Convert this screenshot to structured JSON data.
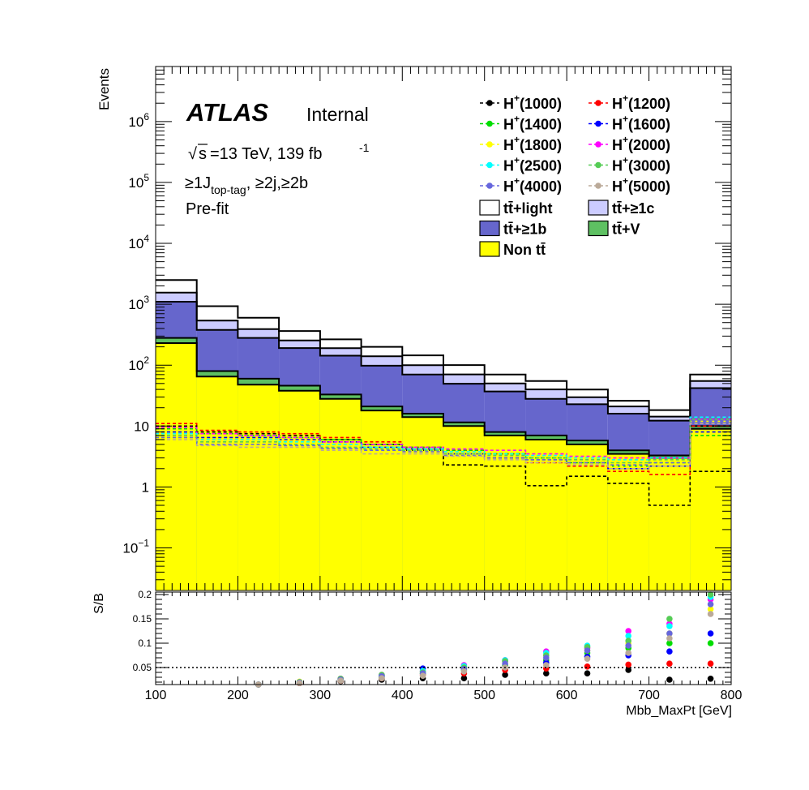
{
  "chart_data": [
    {
      "type": "bar",
      "stacked": true,
      "log_y": true,
      "atlas_label": "ATLAS",
      "status_label": "Internal",
      "energy_text": "=13 TeV, 139 fb",
      "energy_sqrt": "s",
      "lumi_exponent": "-1",
      "region_prefix": "≥1J",
      "region_sub": "top-tag",
      "region_suffix": ", ≥2j,≥2b",
      "fit_label": "Pre-fit",
      "ylabel": "Events",
      "ylim": [
        0.02,
        8000000
      ],
      "yticks": [
        {
          "v": 0.1,
          "base": "10",
          "exp": "−1"
        },
        {
          "v": 1,
          "base": "1",
          "exp": ""
        },
        {
          "v": 10,
          "base": "10",
          "exp": ""
        },
        {
          "v": 100,
          "base": "10",
          "exp": "2"
        },
        {
          "v": 1000,
          "base": "10",
          "exp": "3"
        },
        {
          "v": 10000,
          "base": "10",
          "exp": "4"
        },
        {
          "v": 100000,
          "base": "10",
          "exp": "5"
        },
        {
          "v": 1000000,
          "base": "10",
          "exp": "6"
        }
      ],
      "bin_edges": [
        100,
        150,
        200,
        250,
        300,
        350,
        400,
        450,
        500,
        550,
        600,
        650,
        700,
        750,
        800
      ],
      "series": [
        {
          "name": "Non tt̄",
          "color": "#ffff00",
          "values": [
            230,
            65,
            48,
            38,
            28,
            18,
            14,
            10,
            7.0,
            6.0,
            5.0,
            3.5,
            3.0,
            9.0
          ]
        },
        {
          "name": "tt̄+V",
          "color": "#5ec062",
          "values": [
            50,
            15,
            12,
            8,
            5,
            3,
            2,
            1.5,
            1.0,
            1.0,
            0.8,
            0.5,
            0.3,
            1.0
          ]
        },
        {
          "name": "tt̄+≥1b",
          "color": "#6666cc",
          "values": [
            820,
            300,
            220,
            145,
            110,
            77,
            54,
            38,
            29,
            21,
            17,
            12,
            9,
            32
          ]
        },
        {
          "name": "tt̄+≥1c",
          "color": "#ccccff",
          "values": [
            450,
            160,
            110,
            63,
            47,
            42,
            30,
            21,
            13,
            12,
            7,
            5,
            2,
            13
          ]
        },
        {
          "name": "tt̄+light",
          "color": "#ffffff",
          "values": [
            950,
            390,
            210,
            110,
            75,
            60,
            45,
            30,
            20,
            15,
            10,
            5,
            4,
            15
          ]
        }
      ],
      "signals": [
        {
          "name": "H(1000)",
          "color": "#000000",
          "values": [
            10,
            8,
            7.5,
            7,
            6,
            5,
            4,
            2.3,
            2.2,
            1.05,
            1.5,
            1.15,
            0.5,
            1.8
          ]
        },
        {
          "name": "H(1200)",
          "color": "#ff0000",
          "values": [
            11,
            8.5,
            8,
            7.5,
            6.5,
            5.5,
            4.5,
            4.0,
            3.5,
            2.5,
            2.2,
            1.8,
            1.6,
            10
          ]
        },
        {
          "name": "H(1400)",
          "color": "#00dd00",
          "values": [
            9,
            7.5,
            7,
            6.5,
            6,
            5,
            4.5,
            4.0,
            3.5,
            3.0,
            2.5,
            2.2,
            2.5,
            7
          ]
        },
        {
          "name": "H(1600)",
          "color": "#0000ff",
          "values": [
            8,
            6.5,
            6.5,
            6,
            5.5,
            4.5,
            4.2,
            3.5,
            3.0,
            2.8,
            2.5,
            2.0,
            2.2,
            8
          ]
        },
        {
          "name": "H(1800)",
          "color": "#ffff00",
          "values": [
            7,
            5.5,
            6,
            5.5,
            5,
            4.2,
            4.0,
            3.5,
            3.2,
            2.8,
            2.5,
            2.2,
            2.8,
            12
          ]
        },
        {
          "name": "H(2000)",
          "color": "#ff00ff",
          "values": [
            9.5,
            7.5,
            7,
            6.5,
            5.5,
            5.0,
            4.5,
            4.2,
            4.0,
            3.5,
            3.2,
            3.0,
            3.0,
            13
          ]
        },
        {
          "name": "H(2500)",
          "color": "#00ffff",
          "values": [
            7.5,
            6,
            6,
            5.5,
            5,
            4.5,
            4.2,
            3.8,
            3.5,
            3.3,
            3.0,
            2.8,
            3.0,
            14
          ]
        },
        {
          "name": "H(3000)",
          "color": "#55cc55",
          "values": [
            7,
            5.5,
            5.5,
            5,
            4.5,
            4.2,
            4.0,
            3.5,
            3.3,
            3.0,
            2.8,
            2.5,
            2.8,
            13
          ]
        },
        {
          "name": "H(4000)",
          "color": "#6666dd",
          "values": [
            6.5,
            5,
            5,
            4.8,
            4.3,
            4.0,
            3.8,
            3.3,
            3.0,
            2.8,
            2.5,
            2.3,
            2.5,
            12
          ]
        },
        {
          "name": "H(5000)",
          "color": "#bbaa99",
          "values": [
            6,
            4.8,
            4.5,
            4.5,
            4.0,
            3.5,
            3.5,
            3.2,
            2.8,
            2.5,
            2.3,
            2.0,
            2.2,
            11
          ]
        }
      ],
      "legend": {
        "position": "top-right",
        "signal_entries": [
          "H(1000)",
          "H(1200)",
          "H(1400)",
          "H(1600)",
          "H(1800)",
          "H(2000)",
          "H(2500)",
          "H(3000)",
          "H(4000)",
          "H(5000)"
        ],
        "signal_prefix": "H",
        "signal_sup": "+",
        "background_entries": [
          {
            "name": "tt̄+light",
            "color": "#ffffff"
          },
          {
            "name": "tt̄+≥1c",
            "color": "#ccccff"
          },
          {
            "name": "tt̄+≥1b",
            "color": "#6666cc"
          },
          {
            "name": "tt̄+V",
            "color": "#5ec062"
          },
          {
            "name": "Non tt̄",
            "color": "#ffff00"
          }
        ]
      }
    },
    {
      "type": "scatter",
      "ylabel": "S/B",
      "xlabel": "Mbb_MaxPt [GeV]",
      "xlim": [
        100,
        800
      ],
      "ylim": [
        0.015,
        0.205
      ],
      "xticks": [
        100,
        200,
        300,
        400,
        500,
        600,
        700,
        800
      ],
      "yticks": [
        "0.05",
        "0.1",
        "0.15",
        "0.2"
      ],
      "reference_line": 0.05,
      "x": [
        225,
        275,
        325,
        375,
        425,
        475,
        525,
        575,
        625,
        675,
        725,
        775
      ],
      "series": [
        {
          "name": "H(1000)",
          "color": "#000000",
          "values": [
            0.015,
            0.018,
            0.022,
            0.025,
            0.028,
            0.028,
            0.035,
            0.038,
            0.038,
            0.045,
            0.025,
            0.027
          ]
        },
        {
          "name": "H(1200)",
          "color": "#ff0000",
          "values": [
            0.015,
            0.018,
            0.023,
            0.028,
            0.035,
            0.038,
            0.045,
            0.048,
            0.052,
            0.056,
            0.058,
            0.058
          ]
        },
        {
          "name": "H(1400)",
          "color": "#00dd00",
          "values": [
            0.015,
            0.02,
            0.025,
            0.03,
            0.038,
            0.045,
            0.055,
            0.065,
            0.08,
            0.09,
            0.1,
            0.1
          ]
        },
        {
          "name": "H(1600)",
          "color": "#0000ff",
          "values": [
            0.015,
            0.02,
            0.026,
            0.033,
            0.048,
            0.05,
            0.065,
            0.06,
            0.072,
            0.075,
            0.083,
            0.12
          ]
        },
        {
          "name": "H(1800)",
          "color": "#ffff00",
          "values": [
            0.015,
            0.021,
            0.026,
            0.033,
            0.042,
            0.052,
            0.062,
            0.075,
            0.085,
            0.1,
            0.12,
            0.17
          ]
        },
        {
          "name": "H(2000)",
          "color": "#ff00ff",
          "values": [
            0.015,
            0.02,
            0.027,
            0.035,
            0.042,
            0.055,
            0.065,
            0.083,
            0.09,
            0.125,
            0.14,
            0.19
          ]
        },
        {
          "name": "H(2500)",
          "color": "#00ffff",
          "values": [
            0.015,
            0.02,
            0.026,
            0.034,
            0.043,
            0.053,
            0.065,
            0.08,
            0.095,
            0.115,
            0.135,
            0.195
          ]
        },
        {
          "name": "H(3000)",
          "color": "#55cc55",
          "values": [
            0.015,
            0.02,
            0.027,
            0.035,
            0.04,
            0.05,
            0.063,
            0.075,
            0.092,
            0.105,
            0.15,
            0.2
          ]
        },
        {
          "name": "H(4000)",
          "color": "#6666dd",
          "values": [
            0.015,
            0.019,
            0.025,
            0.032,
            0.038,
            0.047,
            0.058,
            0.07,
            0.085,
            0.095,
            0.12,
            0.18
          ]
        },
        {
          "name": "H(5000)",
          "color": "#bbaa99",
          "values": [
            0.015,
            0.018,
            0.023,
            0.028,
            0.033,
            0.042,
            0.05,
            0.055,
            0.068,
            0.08,
            0.11,
            0.16
          ]
        }
      ]
    }
  ]
}
